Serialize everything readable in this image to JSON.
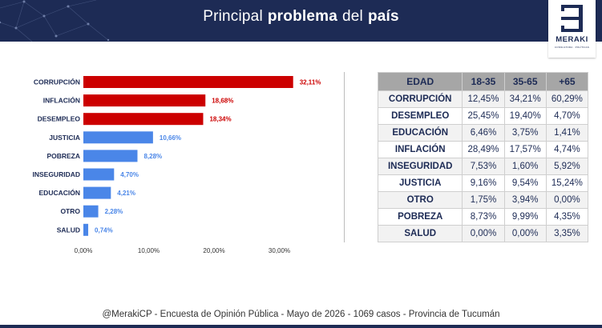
{
  "header": {
    "title_part1": "Principal",
    "title_bold1": "problema",
    "title_part2": "del",
    "title_bold2": "país",
    "brand_color": "#1d2b55"
  },
  "logo": {
    "name": "MERAKI",
    "tagline": "CONSULTORA · POLÍTICAS"
  },
  "chart_data": {
    "type": "bar",
    "orientation": "horizontal",
    "categories": [
      "CORRUPCIÓN",
      "INFLACIÓN",
      "DESEMPLEO",
      "JUSTICIA",
      "POBREZA",
      "INSEGURIDAD",
      "EDUCACIÓN",
      "OTRO",
      "SALUD"
    ],
    "values": [
      32.11,
      18.68,
      18.34,
      10.66,
      8.28,
      4.7,
      4.21,
      2.28,
      0.74
    ],
    "data_labels": [
      "32,11%",
      "18,68%",
      "18,34%",
      "10,66%",
      "8,28%",
      "4,70%",
      "4,21%",
      "2,28%",
      "0,74%"
    ],
    "highlight_count": 3,
    "colors": {
      "highlight": "#cc0000",
      "normal": "#4a86e8"
    },
    "xlim": [
      0,
      35
    ],
    "xticks": [
      0,
      10,
      20,
      30
    ],
    "xtick_labels": [
      "0,00%",
      "10,00%",
      "20,00%",
      "30,00%"
    ],
    "title": "",
    "xlabel": "",
    "ylabel": ""
  },
  "table": {
    "headers": [
      "EDAD",
      "18-35",
      "35-65",
      "+65"
    ],
    "rows": [
      [
        "CORRUPCIÓN",
        "12,45%",
        "34,21%",
        "60,29%"
      ],
      [
        "DESEMPLEO",
        "25,45%",
        "19,40%",
        "4,70%"
      ],
      [
        "EDUCACIÓN",
        "6,46%",
        "3,75%",
        "1,41%"
      ],
      [
        "INFLACIÓN",
        "28,49%",
        "17,57%",
        "4,74%"
      ],
      [
        "INSEGURIDAD",
        "7,53%",
        "1,60%",
        "5,92%"
      ],
      [
        "JUSTICIA",
        "9,16%",
        "9,54%",
        "15,24%"
      ],
      [
        "OTRO",
        "1,75%",
        "3,94%",
        "0,00%"
      ],
      [
        "POBREZA",
        "8,73%",
        "9,99%",
        "4,35%"
      ],
      [
        "SALUD",
        "0,00%",
        "0,00%",
        "3,35%"
      ]
    ]
  },
  "footer": {
    "text": "@MerakiCP - Encuesta de Opinión Pública - Mayo de 2026 - 1069 casos - Provincia de Tucumán"
  }
}
